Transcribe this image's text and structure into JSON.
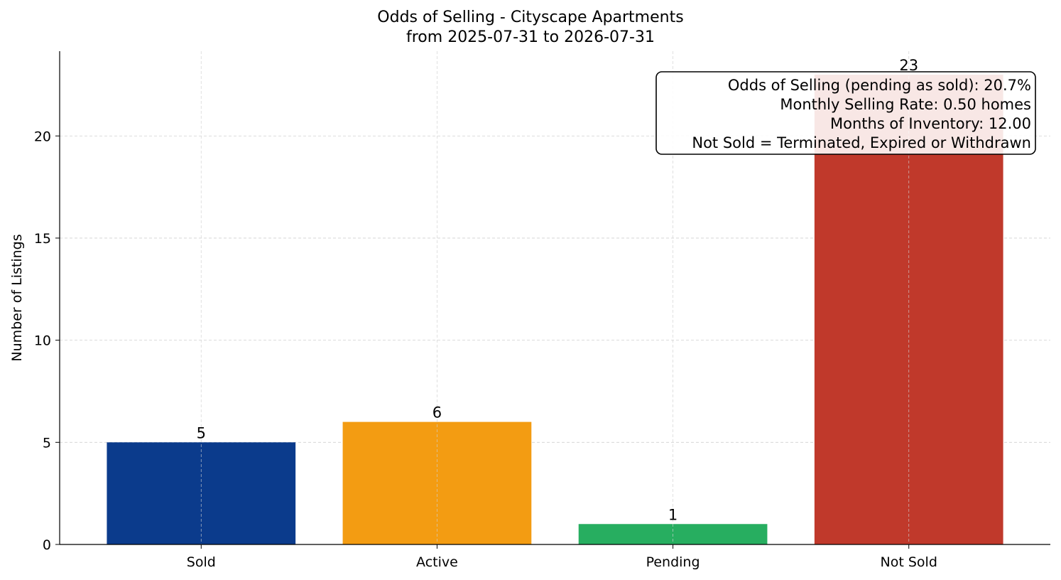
{
  "chart_data": {
    "type": "bar",
    "title": "Odds of Selling - Cityscape Apartments",
    "subtitle": "from 2025-07-31 to 2026-07-31",
    "xlabel": "",
    "ylabel": "Number of Listings",
    "categories": [
      "Sold",
      "Active",
      "Pending",
      "Not Sold"
    ],
    "values": [
      5,
      6,
      1,
      23
    ],
    "colors": [
      "#0b3b8c",
      "#f39c12",
      "#27ae60",
      "#c0392b"
    ],
    "ylim": [
      0,
      24.15
    ],
    "yticks": [
      0,
      5,
      10,
      15,
      20
    ],
    "grid": true,
    "annotation": {
      "placement": "top-right",
      "lines": [
        "Odds of Selling (pending as sold): 20.7%",
        "Monthly Selling Rate: 0.50 homes",
        "Months of Inventory: 12.00",
        "Not Sold = Terminated, Expired or Withdrawn"
      ]
    }
  }
}
